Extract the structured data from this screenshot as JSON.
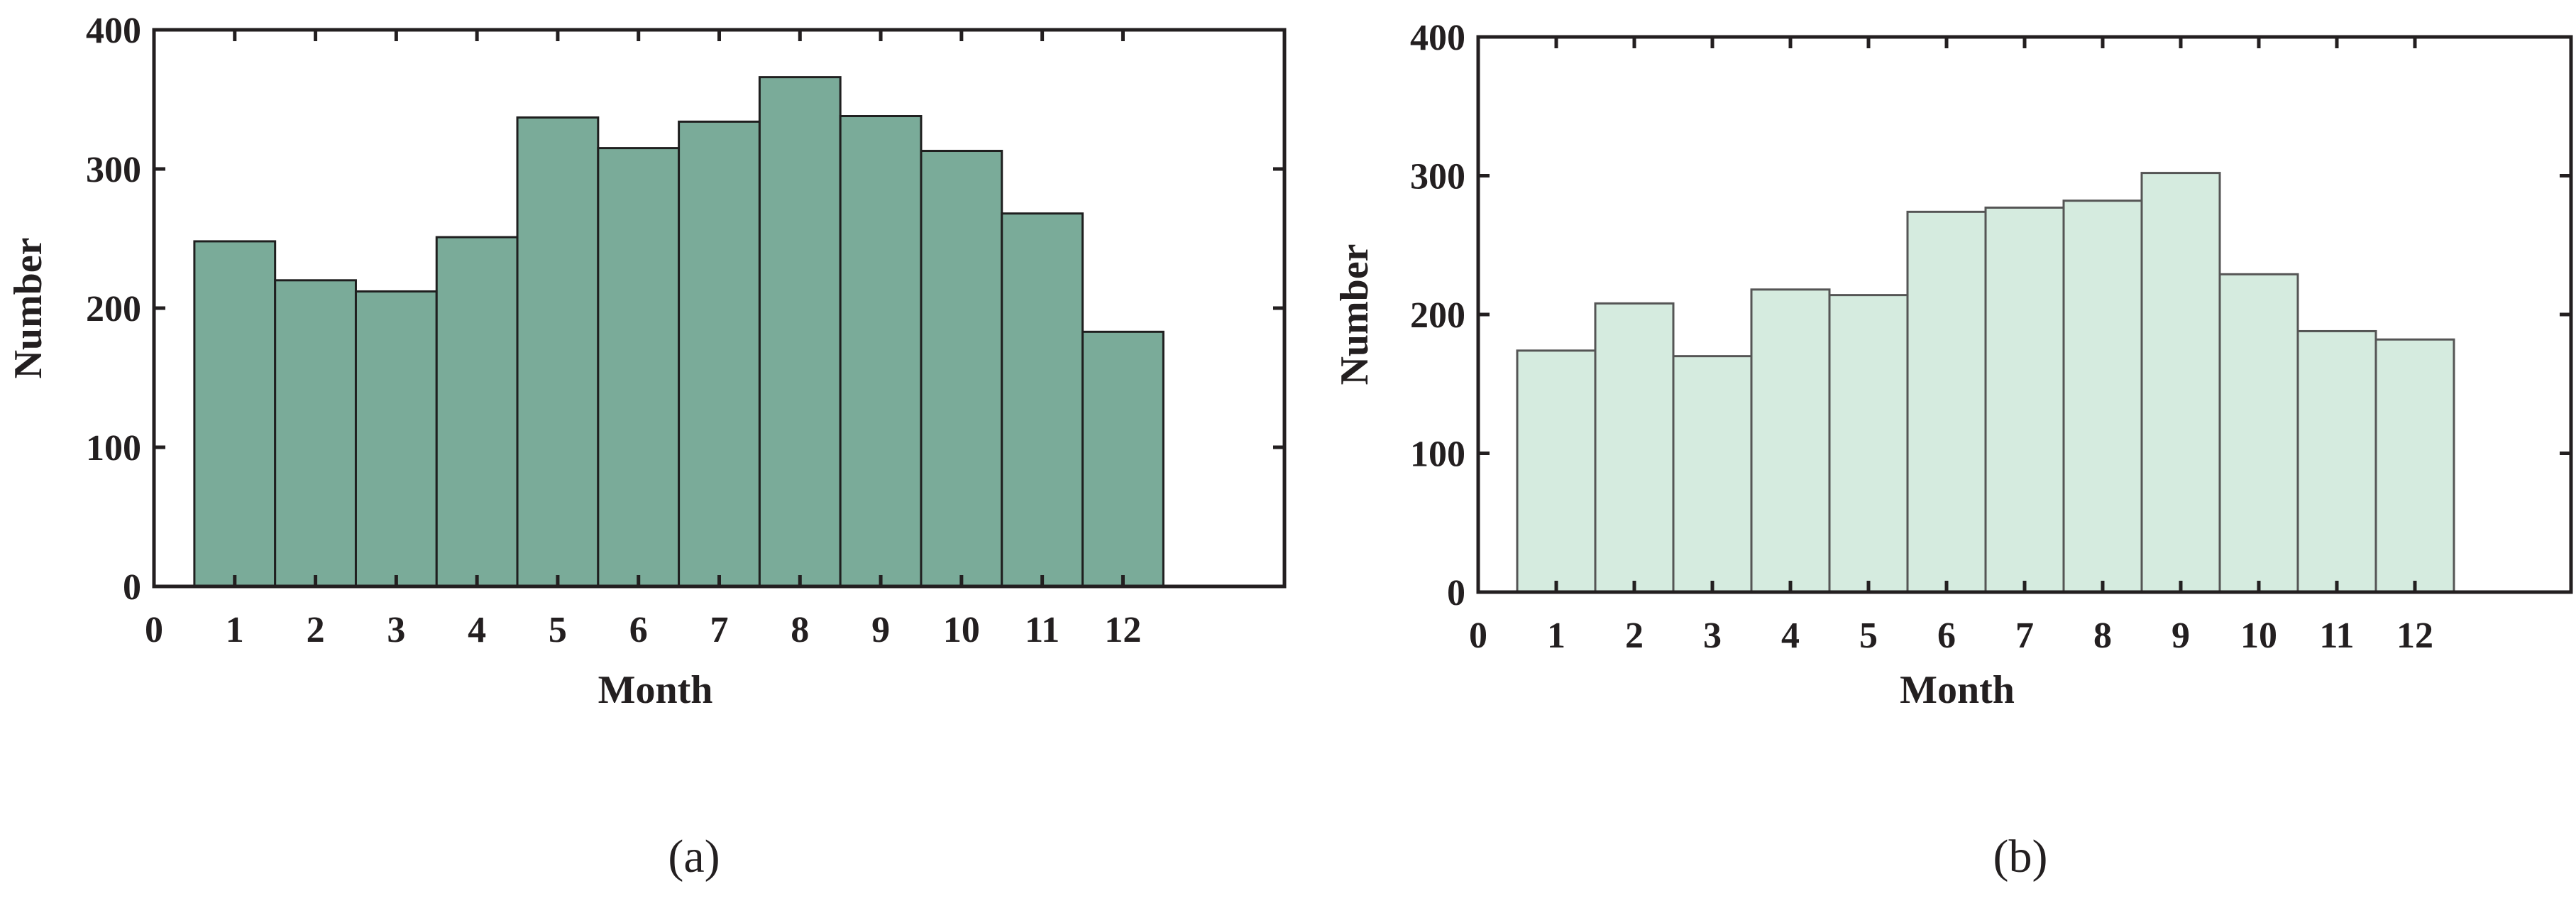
{
  "chart_data": [
    {
      "type": "bar",
      "panel_label": "(a)",
      "xlabel": "Month",
      "ylabel": "Number",
      "categories": [
        "1",
        "2",
        "3",
        "4",
        "5",
        "6",
        "7",
        "8",
        "9",
        "10",
        "11",
        "12"
      ],
      "values": [
        248,
        220,
        212,
        251,
        337,
        315,
        334,
        366,
        338,
        313,
        268,
        183
      ],
      "xlim": [
        0,
        14
      ],
      "ylim": [
        0,
        400
      ],
      "xticks": [
        "0",
        "1",
        "2",
        "3",
        "4",
        "5",
        "6",
        "7",
        "8",
        "9",
        "10",
        "11",
        "12"
      ],
      "yticks": [
        "0",
        "100",
        "200",
        "300",
        "400"
      ],
      "bar_color": "#7aab99",
      "grid": false,
      "legend": "none"
    },
    {
      "type": "bar",
      "panel_label": "(b)",
      "xlabel": "Month",
      "ylabel": "Number",
      "categories": [
        "1",
        "2",
        "3",
        "4",
        "5",
        "6",
        "7",
        "8",
        "9",
        "10",
        "11",
        "12"
      ],
      "values": [
        174,
        208,
        170,
        218,
        214,
        274,
        277,
        282,
        302,
        229,
        188,
        182
      ],
      "xlim": [
        0,
        14
      ],
      "ylim": [
        0,
        400
      ],
      "xticks": [
        "0",
        "1",
        "2",
        "3",
        "4",
        "5",
        "6",
        "7",
        "8",
        "9",
        "10",
        "11",
        "12"
      ],
      "yticks": [
        "0",
        "100",
        "200",
        "300",
        "400"
      ],
      "bar_color": "#d5ebdf",
      "grid": false,
      "legend": "none"
    }
  ]
}
